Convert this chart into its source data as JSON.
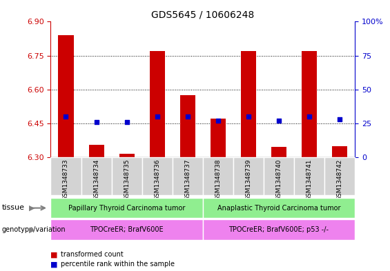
{
  "title": "GDS5645 / 10606248",
  "samples": [
    "GSM1348733",
    "GSM1348734",
    "GSM1348735",
    "GSM1348736",
    "GSM1348737",
    "GSM1348738",
    "GSM1348739",
    "GSM1348740",
    "GSM1348741",
    "GSM1348742"
  ],
  "transformed_count": [
    6.84,
    6.355,
    6.315,
    6.77,
    6.575,
    6.47,
    6.77,
    6.345,
    6.77,
    6.35
  ],
  "percentile_rank": [
    30,
    26,
    26,
    30,
    30,
    27,
    30,
    27,
    30,
    28
  ],
  "bar_bottom": 6.3,
  "ylim": [
    6.3,
    6.9
  ],
  "y2lim": [
    0,
    100
  ],
  "y_ticks": [
    6.3,
    6.45,
    6.6,
    6.75,
    6.9
  ],
  "y2_ticks": [
    0,
    25,
    50,
    75,
    100
  ],
  "bar_color": "#cc0000",
  "dot_color": "#0000cc",
  "tissue_groups": [
    {
      "label": "Papillary Thyroid Carcinoma tumor",
      "start": 0,
      "end": 5,
      "color": "#90ee90"
    },
    {
      "label": "Anaplastic Thyroid Carcinoma tumor",
      "start": 5,
      "end": 10,
      "color": "#90ee90"
    }
  ],
  "genotype_groups": [
    {
      "label": "TPOCreER; BrafV600E",
      "start": 0,
      "end": 5,
      "color": "#ee82ee"
    },
    {
      "label": "TPOCreER; BrafV600E; p53 -/-",
      "start": 5,
      "end": 10,
      "color": "#ee82ee"
    }
  ],
  "tissue_label": "tissue",
  "genotype_label": "genotype/variation",
  "legend_items": [
    {
      "color": "#cc0000",
      "label": "transformed count"
    },
    {
      "color": "#0000cc",
      "label": "percentile rank within the sample"
    }
  ],
  "xlabel_color": "#000000",
  "yaxis_color": "#cc0000",
  "y2axis_color": "#0000cc",
  "bar_width": 0.5,
  "percentile_scale_min": 6.3,
  "percentile_scale_range": 0.6
}
